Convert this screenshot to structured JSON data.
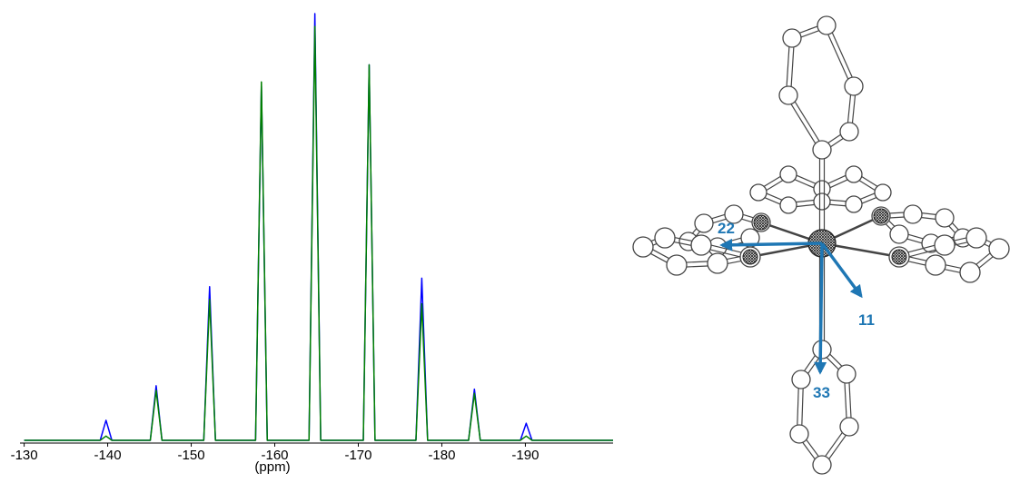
{
  "chart_data": {
    "type": "line",
    "xlabel": "(ppm)",
    "x": [
      -130,
      -139.1,
      -139.8,
      -140.5,
      -145.1,
      -145.8,
      -146.5,
      -151.5,
      -152.2,
      -152.9,
      -157.7,
      -158.4,
      -159.1,
      -164.1,
      -164.8,
      -165.5,
      -170.6,
      -171.3,
      -172.0,
      -176.9,
      -177.6,
      -178.3,
      -183.2,
      -183.9,
      -184.6,
      -189.4,
      -190.1,
      -190.8,
      -200.5
    ],
    "series": [
      {
        "color": "#0000ff",
        "values": [
          0,
          0,
          4.7,
          0,
          0,
          12.8,
          0,
          0,
          36,
          0,
          0,
          83,
          0,
          0,
          100,
          0,
          0,
          88,
          0,
          0,
          38,
          0,
          0,
          12,
          0,
          0,
          4,
          0,
          0
        ]
      },
      {
        "color": "#008000",
        "values": [
          0,
          0,
          1,
          0,
          0,
          11.7,
          0,
          0,
          33,
          0,
          0,
          84,
          0,
          0,
          97,
          0,
          0,
          88,
          0,
          0,
          32,
          0,
          0,
          11,
          0,
          0,
          1,
          0,
          0
        ]
      }
    ],
    "xlim": [
      -129.5,
      -200.5
    ],
    "ylim": [
      0,
      100
    ],
    "xticks": [
      -130,
      -140,
      -150,
      -160,
      -170,
      -180,
      -190
    ]
  },
  "diagram": {
    "labels": [
      "22",
      "11",
      "33"
    ]
  }
}
